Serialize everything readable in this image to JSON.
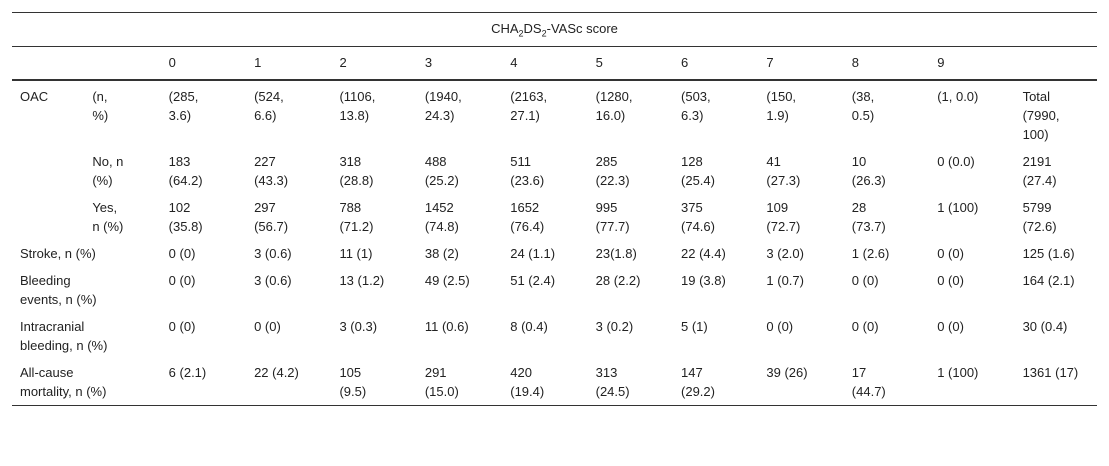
{
  "header": {
    "title_parts": [
      "CHA",
      "2",
      "DS",
      "2",
      "-VASc score"
    ]
  },
  "columns": [
    "0",
    "1",
    "2",
    "3",
    "4",
    "5",
    "6",
    "7",
    "8",
    "9"
  ],
  "rows": [
    {
      "label": "OAC",
      "sublabel": "(n, %)",
      "cells": [
        "(285, 3.6)",
        "(524, 6.6)",
        "(1106, 13.8)",
        "(1940, 24.3)",
        "(2163, 27.1)",
        "(1280, 16.0)",
        "(503, 6.3)",
        "(150, 1.9)",
        "(38, 0.5)",
        "(1, 0.0)",
        "Total (7990, 100)"
      ]
    },
    {
      "sublabel": "No, n (%)",
      "cells": [
        "183 (64.2)",
        "227 (43.3)",
        "318 (28.8)",
        "488 (25.2)",
        "511 (23.6)",
        "285 (22.3)",
        "128 (25.4)",
        "41 (27.3)",
        "10 (26.3)",
        "0 (0.0)",
        "2191 (27.4)"
      ]
    },
    {
      "sublabel": "Yes, n (%)",
      "cells": [
        "102 (35.8)",
        "297 (56.7)",
        "788 (71.2)",
        "1452 (74.8)",
        "1652 (76.4)",
        "995 (77.7)",
        "375 (74.6)",
        "109 (72.7)",
        "28 (73.7)",
        "1 (100)",
        "5799 (72.6)"
      ]
    },
    {
      "label": "Stroke, n (%)",
      "cells": [
        "0 (0)",
        "3 (0.6)",
        "11 (1)",
        "38 (2)",
        "24 (1.1)",
        "23(1.8)",
        "22 (4.4)",
        "3 (2.0)",
        "1 (2.6)",
        "0 (0)",
        "125 (1.6)"
      ]
    },
    {
      "label": "Bleeding events, n (%)",
      "cells": [
        "0 (0)",
        "3 (0.6)",
        "13 (1.2)",
        "49 (2.5)",
        "51 (2.4)",
        "28 (2.2)",
        "19 (3.8)",
        "1 (0.7)",
        "0 (0)",
        "0 (0)",
        "164 (2.1)"
      ]
    },
    {
      "label": "Intracranial bleeding, n (%)",
      "cells": [
        "0 (0)",
        "0 (0)",
        "3 (0.3)",
        "11 (0.6)",
        "8 (0.4)",
        "3 (0.2)",
        "5 (1)",
        "0 (0)",
        "0 (0)",
        "0 (0)",
        "30 (0.4)"
      ]
    },
    {
      "label": "All-cause mortality, n (%)",
      "cells": [
        "6 (2.1)",
        "22 (4.2)",
        "105 (9.5)",
        "291 (15.0)",
        "420 (19.4)",
        "313 (24.5)",
        "147 (29.2)",
        "39 (26)",
        "17 (44.7)",
        "1 (100)",
        "1361 (17)"
      ]
    }
  ]
}
